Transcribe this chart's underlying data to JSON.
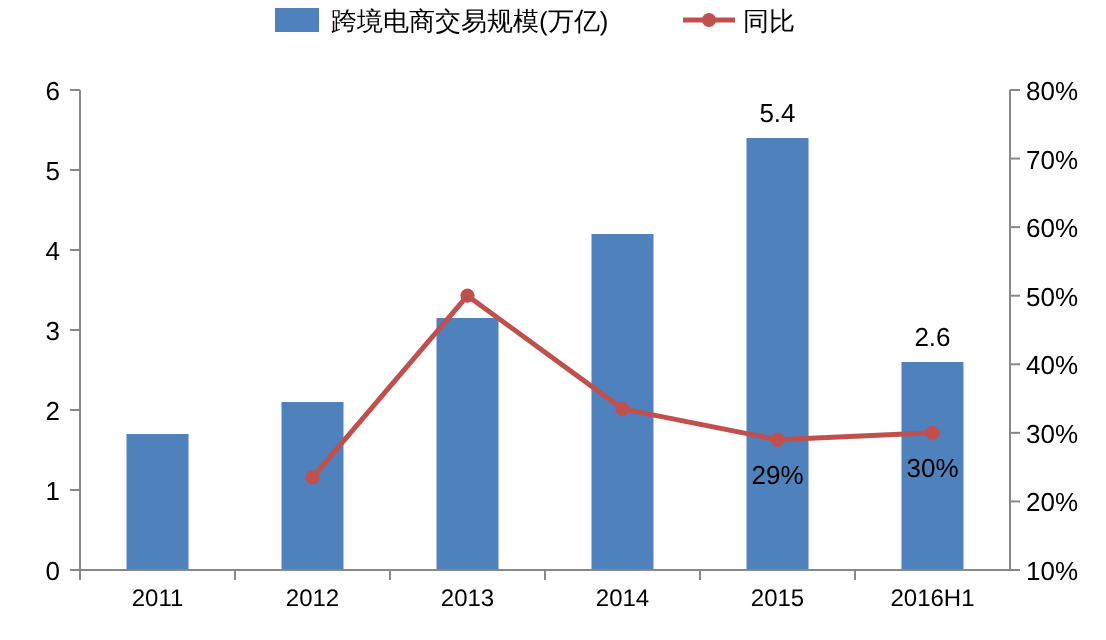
{
  "chart_data": {
    "type": "bar",
    "categories": [
      "2011",
      "2012",
      "2013",
      "2014",
      "2015",
      "2016H1"
    ],
    "series": [
      {
        "name": "跨境电商交易规模(万亿)",
        "color": "#4f81bd",
        "values": [
          1.7,
          2.1,
          3.15,
          4.2,
          5.4,
          2.6
        ],
        "value_labels": [
          null,
          null,
          null,
          null,
          "5.4",
          "2.6"
        ]
      },
      {
        "name": "同比",
        "type": "line",
        "axis": "y2",
        "color": "#c0504d",
        "marker": "circle",
        "values": [
          null,
          23.5,
          50,
          33.5,
          29,
          30
        ],
        "value_labels": [
          null,
          null,
          null,
          null,
          "29%",
          "30%"
        ]
      }
    ],
    "ylim": [
      0,
      6
    ],
    "yticks": [
      0,
      1,
      2,
      3,
      4,
      5,
      6
    ],
    "y2lim": [
      10,
      80
    ],
    "y2ticks": [
      {
        "value": 10,
        "label": "10%"
      },
      {
        "value": 20,
        "label": "20%"
      },
      {
        "value": 30,
        "label": "30%"
      },
      {
        "value": 40,
        "label": "40%"
      },
      {
        "value": 50,
        "label": "50%"
      },
      {
        "value": 60,
        "label": "60%"
      },
      {
        "value": 70,
        "label": "70%"
      },
      {
        "value": 80,
        "label": "80%"
      }
    ],
    "grid": false,
    "legend": "top"
  }
}
